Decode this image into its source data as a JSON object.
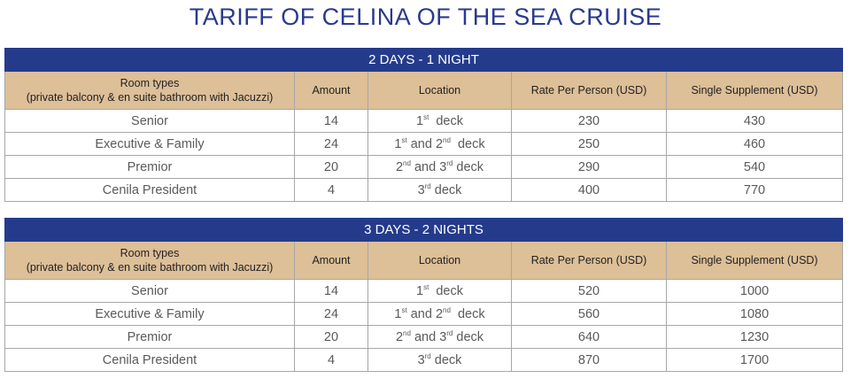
{
  "title": "TARIFF OF CELINA OF THE SEA CRUISE",
  "columns": {
    "room_types_line1": "Room types",
    "room_types_line2": "(private balcony & en suite bathroom with Jacuzzi)",
    "amount": "Amount",
    "location": "Location",
    "rate": "Rate Per Person (USD)",
    "supplement": "Single Supplement (USD)"
  },
  "deck": {
    "word": "deck",
    "and": "and",
    "first": "1",
    "second": "2",
    "third": "3",
    "st": "st",
    "nd": "nd",
    "rd": "rd"
  },
  "tables": [
    {
      "heading": "2 DAYS - 1 NIGHT",
      "rows": [
        {
          "room": "Senior",
          "amount": "14",
          "rate": "230",
          "supplement": "430"
        },
        {
          "room": "Executive & Family",
          "amount": "24",
          "rate": "250",
          "supplement": "460"
        },
        {
          "room": "Premior",
          "amount": "20",
          "rate": "290",
          "supplement": "540"
        },
        {
          "room": "Cenila President",
          "amount": "4",
          "rate": "400",
          "supplement": "770"
        }
      ]
    },
    {
      "heading": "3 DAYS - 2 NIGHTS",
      "rows": [
        {
          "room": "Senior",
          "amount": "14",
          "rate": "520",
          "supplement": "1000"
        },
        {
          "room": "Executive & Family",
          "amount": "24",
          "rate": "560",
          "supplement": "1080"
        },
        {
          "room": "Premior",
          "amount": "20",
          "rate": "640",
          "supplement": "1230"
        },
        {
          "room": "Cenila President",
          "amount": "4",
          "rate": "870",
          "supplement": "1700"
        }
      ]
    }
  ]
}
